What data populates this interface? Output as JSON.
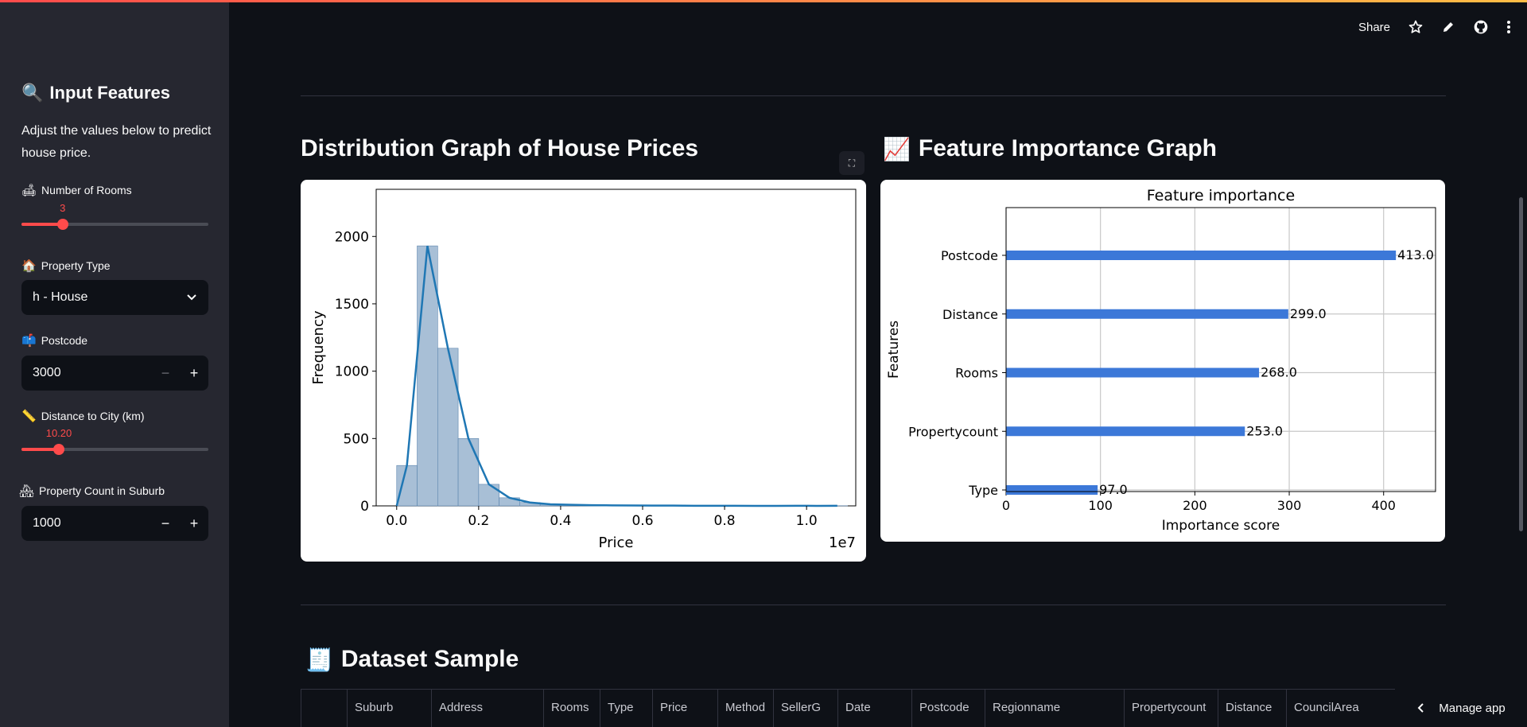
{
  "sidebar": {
    "title_icon": "magnifier-icon",
    "title": "Input Features",
    "description": "Adjust the values below to predict house price.",
    "rooms": {
      "label": "Number of Rooms",
      "value": "3",
      "fraction": 0.22
    },
    "property_type": {
      "label": "Property Type",
      "value": "h - House"
    },
    "postcode": {
      "label": "Postcode",
      "value": "3000",
      "minus": "−",
      "plus": "+"
    },
    "distance": {
      "label": "Distance to City (km)",
      "value": "10.20",
      "fraction": 0.2
    },
    "property_count": {
      "label": "Property Count in Suburb",
      "value": "1000",
      "minus": "−",
      "plus": "+"
    }
  },
  "header": {
    "share": "Share"
  },
  "main": {
    "dist_title": "Distribution Graph of House Prices",
    "feat_title": "Feature Importance Graph",
    "dataset_title": "Dataset Sample",
    "columns": [
      "",
      "Suburb",
      "Address",
      "Rooms",
      "Type",
      "Price",
      "Method",
      "SellerG",
      "Date",
      "Postcode",
      "Regionname",
      "Propertycount",
      "Distance",
      "CouncilArea"
    ]
  },
  "manage_app": "Manage app",
  "chart_data": [
    {
      "type": "bar",
      "title": "",
      "xlabel": "Price",
      "ylabel": "Frequency",
      "x_offset_label": "1e7",
      "xlim": [
        -0.05,
        1.12
      ],
      "ylim": [
        0,
        2350
      ],
      "xticks": [
        "0.0",
        "0.2",
        "0.4",
        "0.6",
        "0.8",
        "1.0"
      ],
      "yticks": [
        "0",
        "500",
        "1000",
        "1500",
        "2000"
      ],
      "series": [
        {
          "x": [
            0.05,
            0.1,
            0.15,
            0.2,
            0.25,
            0.3,
            0.35,
            0.4,
            0.45,
            0.5,
            0.55,
            0.6,
            0.65,
            0.7,
            0.75,
            0.8,
            0.85,
            0.9,
            0.95,
            1.0,
            1.05,
            1.1
          ],
          "values": [
            300,
            1930,
            1170,
            500,
            160,
            60,
            25,
            12,
            8,
            5,
            4,
            3,
            2,
            2,
            1,
            1,
            1,
            0,
            0,
            1,
            0,
            1
          ]
        }
      ]
    },
    {
      "type": "bar",
      "orientation": "horizontal",
      "title": "Feature importance",
      "xlabel": "Importance score",
      "ylabel": "Features",
      "xlim": [
        0,
        455
      ],
      "xticks": [
        "0",
        "100",
        "200",
        "300",
        "400"
      ],
      "categories": [
        "Postcode",
        "Distance",
        "Rooms",
        "Propertycount",
        "Type"
      ],
      "values": [
        413.0,
        299.0,
        268.0,
        253.0,
        97.0
      ],
      "value_labels": [
        "413.0",
        "299.0",
        "268.0",
        "253.0",
        "97.0"
      ],
      "grid": true
    }
  ]
}
